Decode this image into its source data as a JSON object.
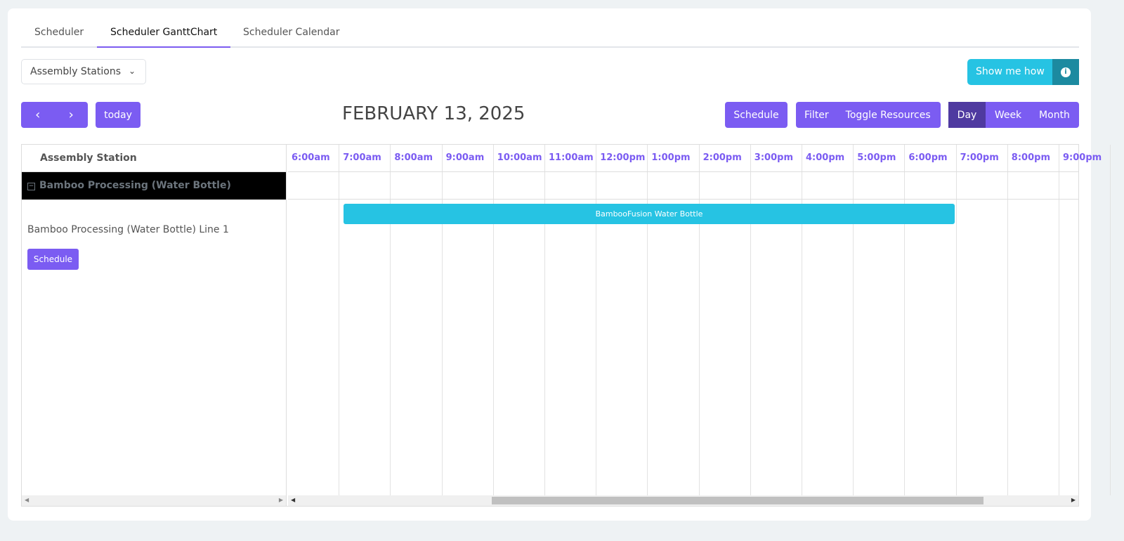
{
  "tabs": [
    {
      "label": "Scheduler"
    },
    {
      "label": "Scheduler GanttChart",
      "active": true
    },
    {
      "label": "Scheduler Calendar"
    }
  ],
  "resource_select": {
    "value": "Assembly Stations"
  },
  "show_me_how": {
    "label": "Show me how",
    "icon": "info-icon"
  },
  "toolbar": {
    "prev_icon": "chevron-left-icon",
    "next_icon": "chevron-right-icon",
    "today": "today",
    "title": "FEBRUARY 13, 2025",
    "schedule": "Schedule",
    "filter": "Filter",
    "toggle_resources": "Toggle Resources",
    "views": [
      {
        "label": "Day",
        "active": true
      },
      {
        "label": "Week"
      },
      {
        "label": "Month"
      }
    ]
  },
  "gantt": {
    "resource_header": "Assembly Station",
    "group": "Bamboo Processing (Water Bottle)",
    "resource": "Bamboo Processing (Water Bottle) Line 1",
    "resource_button": "Schedule",
    "hours": [
      "6:00am",
      "7:00am",
      "8:00am",
      "9:00am",
      "10:00am",
      "11:00am",
      "12:00pm",
      "1:00pm",
      "2:00pm",
      "3:00pm",
      "4:00pm",
      "5:00pm",
      "6:00pm",
      "7:00pm",
      "8:00pm",
      "9:00pm"
    ],
    "events": [
      {
        "title": "BambooFusion Water Bottle",
        "start": "7:00am",
        "end": "7:00pm"
      }
    ]
  },
  "colors": {
    "accent": "#7b5cf2",
    "accent_dark": "#4f3aa0",
    "info": "#26c3e3",
    "event": "#26c3e3"
  }
}
